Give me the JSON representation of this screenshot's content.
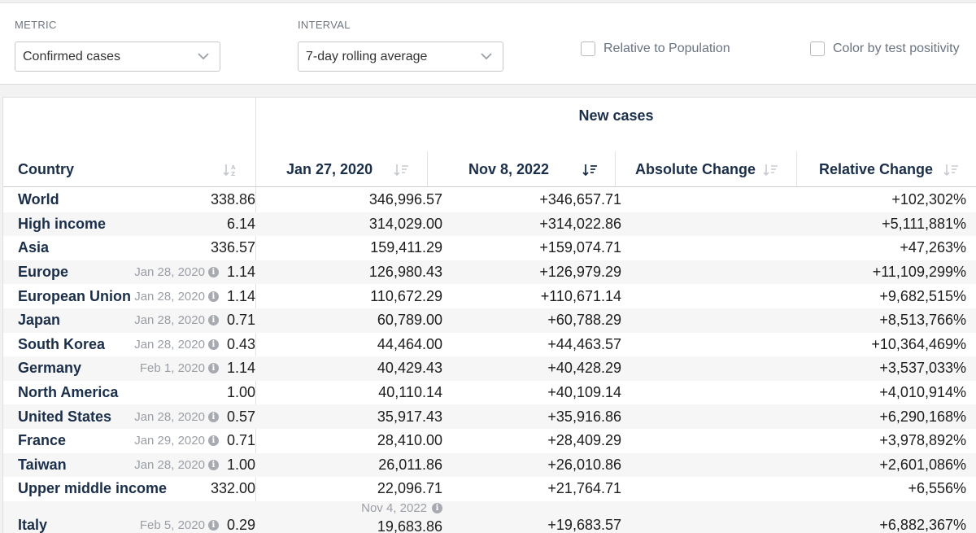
{
  "controls": {
    "metric_label": "METRIC",
    "metric_value": "Confirmed cases",
    "interval_label": "INTERVAL",
    "interval_value": "7-day rolling average",
    "relative_population_label": "Relative to Population",
    "color_positivity_label": "Color by test positivity"
  },
  "table": {
    "group_header": "New cases",
    "columns": {
      "country": "Country",
      "start": "Jan 27, 2020",
      "end": "Nov 8, 2022",
      "absolute": "Absolute Change",
      "relative": "Relative Change"
    },
    "rows": [
      {
        "country": "World",
        "note": "",
        "start": "338.86",
        "end": "346,996.57",
        "abs": "+346,657.71",
        "rel": "+102,302%"
      },
      {
        "country": "High income",
        "note": "",
        "start": "6.14",
        "end": "314,029.00",
        "abs": "+314,022.86",
        "rel": "+5,111,881%"
      },
      {
        "country": "Asia",
        "note": "",
        "start": "336.57",
        "end": "159,411.29",
        "abs": "+159,074.71",
        "rel": "+47,263%"
      },
      {
        "country": "Europe",
        "note": "Jan 28, 2020",
        "start": "1.14",
        "end": "126,980.43",
        "abs": "+126,979.29",
        "rel": "+11,109,299%"
      },
      {
        "country": "European Union",
        "note": "Jan 28, 2020",
        "start": "1.14",
        "end": "110,672.29",
        "abs": "+110,671.14",
        "rel": "+9,682,515%"
      },
      {
        "country": "Japan",
        "note": "Jan 28, 2020",
        "start": "0.71",
        "end": "60,789.00",
        "abs": "+60,788.29",
        "rel": "+8,513,766%"
      },
      {
        "country": "South Korea",
        "note": "Jan 28, 2020",
        "start": "0.43",
        "end": "44,464.00",
        "abs": "+44,463.57",
        "rel": "+10,364,469%"
      },
      {
        "country": "Germany",
        "note": "Feb 1, 2020",
        "start": "1.14",
        "end": "40,429.43",
        "abs": "+40,428.29",
        "rel": "+3,537,033%"
      },
      {
        "country": "North America",
        "note": "",
        "start": "1.00",
        "end": "40,110.14",
        "abs": "+40,109.14",
        "rel": "+4,010,914%"
      },
      {
        "country": "United States",
        "note": "Jan 28, 2020",
        "start": "0.57",
        "end": "35,917.43",
        "abs": "+35,916.86",
        "rel": "+6,290,168%"
      },
      {
        "country": "France",
        "note": "Jan 29, 2020",
        "start": "0.71",
        "end": "28,410.00",
        "abs": "+28,409.29",
        "rel": "+3,978,892%"
      },
      {
        "country": "Taiwan",
        "note": "Jan 28, 2020",
        "start": "1.00",
        "end": "26,011.86",
        "abs": "+26,010.86",
        "rel": "+2,601,086%"
      },
      {
        "country": "Upper middle income",
        "note": "",
        "start": "332.00",
        "end": "22,096.71",
        "abs": "+21,764.71",
        "rel": "+6,556%"
      }
    ],
    "italy": {
      "country": "Italy",
      "note": "Feb 5, 2020",
      "start": "0.29",
      "end_note": "Nov 4, 2022",
      "end": "19,683.86",
      "abs": "+19,683.57",
      "rel": "+6,882,367%"
    }
  }
}
